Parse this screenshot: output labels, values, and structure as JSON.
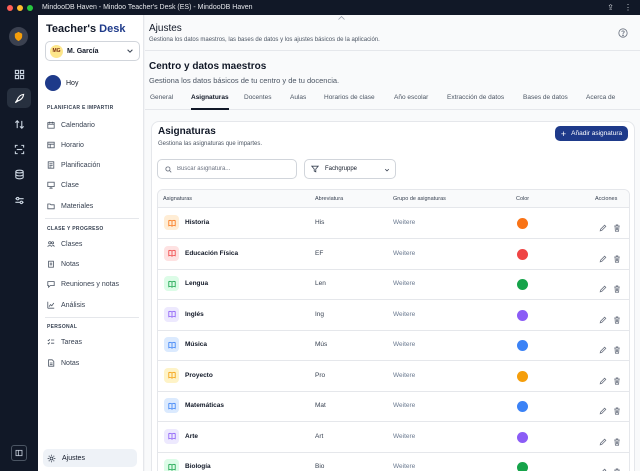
{
  "window": {
    "title": "MindooDB Haven - Mindoo Teacher's Desk (ES) - MindooDB Haven"
  },
  "brand": {
    "part1": "Teacher's",
    "part2": "Desk"
  },
  "user": {
    "initials": "MG",
    "name": "M. García"
  },
  "sidebar": {
    "home": "Hoy",
    "sections": [
      {
        "title": "PLANIFICAR E IMPARTIR",
        "items": [
          "Calendario",
          "Horario",
          "Planificación",
          "Clase",
          "Materiales"
        ]
      },
      {
        "title": "CLASE Y PROGRESO",
        "items": [
          "Clases",
          "Notas",
          "Reuniones y notas",
          "Análisis"
        ]
      },
      {
        "title": "PERSONAL",
        "items": [
          "Tareas",
          "Notas"
        ]
      }
    ],
    "settings": "Ajustes"
  },
  "header": {
    "title": "Ajustes",
    "subtitle": "Gestiona los datos maestros, las bases de datos y los ajustes básicos de la aplicación."
  },
  "section": {
    "title": "Centro y datos maestros",
    "subtitle": "Gestiona los datos básicos de tu centro y de tu docencia."
  },
  "tabs": [
    "General",
    "Asignaturas",
    "Docentes",
    "Aulas",
    "Horarios de clase",
    "Año escolar",
    "Extracción de datos",
    "Bases de datos",
    "Acerca de"
  ],
  "active_tab": "Asignaturas",
  "card": {
    "title": "Asignaturas",
    "subtitle": "Gestiona las asignaturas que impartes.",
    "add_button": "Añadir asignatura",
    "search_placeholder": "Buscar asignatura...",
    "filter_value": "Fachgruppe"
  },
  "table": {
    "headers": {
      "subject": "Asignaturas",
      "abbr": "Abreviatura",
      "group": "Grupo de asignaturas",
      "color": "Color",
      "actions": "Acciones"
    },
    "rows": [
      {
        "name": "Historia",
        "abbr": "His",
        "group": "Weitere",
        "color": "#f97316",
        "tint": "#ffedd5"
      },
      {
        "name": "Educación Física",
        "abbr": "EF",
        "group": "Weitere",
        "color": "#ef4444",
        "tint": "#fee2e2"
      },
      {
        "name": "Lengua",
        "abbr": "Len",
        "group": "Weitere",
        "color": "#16a34a",
        "tint": "#dcfce7"
      },
      {
        "name": "Inglés",
        "abbr": "Ing",
        "group": "Weitere",
        "color": "#8b5cf6",
        "tint": "#ede9fe"
      },
      {
        "name": "Música",
        "abbr": "Mús",
        "group": "Weitere",
        "color": "#3b82f6",
        "tint": "#dbeafe"
      },
      {
        "name": "Proyecto",
        "abbr": "Pro",
        "group": "Weitere",
        "color": "#f59e0b",
        "tint": "#fef3c7"
      },
      {
        "name": "Matemáticas",
        "abbr": "Mat",
        "group": "Weitere",
        "color": "#3b82f6",
        "tint": "#dbeafe"
      },
      {
        "name": "Arte",
        "abbr": "Art",
        "group": "Weitere",
        "color": "#8b5cf6",
        "tint": "#ede9fe"
      },
      {
        "name": "Biología",
        "abbr": "Bio",
        "group": "Weitere",
        "color": "#16a34a",
        "tint": "#dcfce7"
      }
    ]
  },
  "icons": {
    "rail": [
      "dashboard-icon",
      "rocket-icon",
      "arrows-sort-icon",
      "scan-icon",
      "database-icon",
      "sliders-icon"
    ],
    "book": "book-open-icon",
    "edit": "pencil-icon",
    "delete": "trash-icon"
  }
}
